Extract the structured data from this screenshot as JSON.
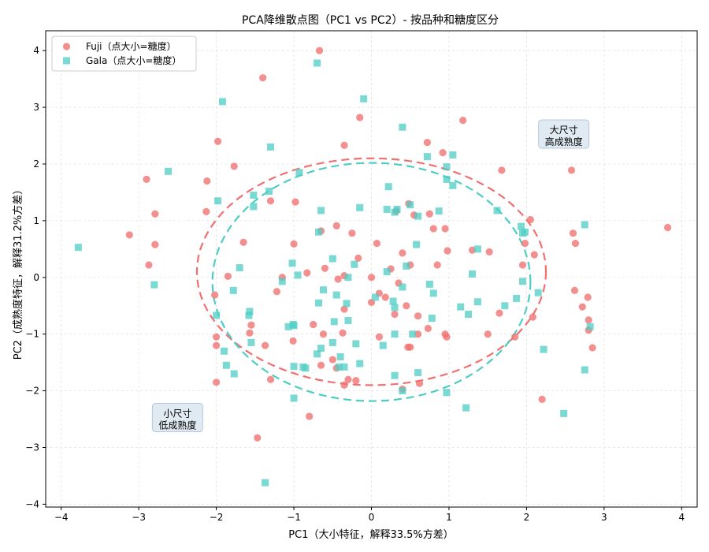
{
  "chart_data": {
    "type": "scatter",
    "title": "PCA降维散点图（PC1 vs PC2）- 按品种和糖度区分",
    "xlabel": "PC1（大小特征，解释33.5%方差）",
    "ylabel": "PC2（成熟度特征，解释31.2%方差）",
    "xlim": [
      -4.2,
      4.2
    ],
    "ylim": [
      -4.05,
      4.35
    ],
    "xticks": [
      -4,
      -3,
      -2,
      -1,
      0,
      1,
      2,
      3,
      4
    ],
    "yticks": [
      -4,
      -3,
      -2,
      -1,
      0,
      1,
      2,
      3,
      4
    ],
    "grid": true,
    "legend_position": "top-left",
    "series": [
      {
        "name": "Fuji（点大小=糖度）",
        "marker": "circle",
        "color": "#f07070",
        "points": [
          [
            -0.67,
            4.0
          ],
          [
            -1.4,
            3.52
          ],
          [
            -0.35,
            2.33
          ],
          [
            -0.15,
            2.82
          ],
          [
            0.72,
            2.38
          ],
          [
            0.92,
            2.2
          ],
          [
            1.18,
            2.77
          ],
          [
            1.68,
            1.89
          ],
          [
            -1.77,
            1.96
          ],
          [
            -1.98,
            2.4
          ],
          [
            -2.12,
            1.7
          ],
          [
            -2.9,
            1.73
          ],
          [
            -2.79,
            1.12
          ],
          [
            -2.13,
            1.16
          ],
          [
            -3.12,
            0.75
          ],
          [
            -2.79,
            0.58
          ],
          [
            -2.87,
            0.22
          ],
          [
            -1.3,
            1.35
          ],
          [
            -0.98,
            1.33
          ],
          [
            -0.65,
            0.82
          ],
          [
            -0.45,
            0.91
          ],
          [
            -0.25,
            0.78
          ],
          [
            0.07,
            0.6
          ],
          [
            -0.17,
            0.34
          ],
          [
            0.0,
            0.0
          ],
          [
            -0.35,
            0.03
          ],
          [
            -0.43,
            -0.03
          ],
          [
            -0.6,
            0.16
          ],
          [
            -0.83,
            0.08
          ],
          [
            -1.0,
            0.59
          ],
          [
            -1.22,
            -0.25
          ],
          [
            -1.15,
            0.0
          ],
          [
            -1.65,
            0.62
          ],
          [
            -1.85,
            0.02
          ],
          [
            -2.02,
            -0.31
          ],
          [
            -1.55,
            -0.84
          ],
          [
            -1.37,
            -1.2
          ],
          [
            -1.01,
            -1.12
          ],
          [
            -0.75,
            -0.83
          ],
          [
            -0.37,
            -0.98
          ],
          [
            -0.35,
            -0.56
          ],
          [
            -0.62,
            -1.0
          ],
          [
            -0.65,
            -1.55
          ],
          [
            -0.5,
            -1.45
          ],
          [
            -0.45,
            -1.6
          ],
          [
            -0.35,
            -1.9
          ],
          [
            -0.3,
            -1.8
          ],
          [
            -0.2,
            -1.82
          ],
          [
            -1.3,
            -1.8
          ],
          [
            -2.0,
            -1.85
          ],
          [
            -2.0,
            -1.2
          ],
          [
            -2.0,
            -1.05
          ],
          [
            -1.57,
            -0.98
          ],
          [
            -0.8,
            -2.45
          ],
          [
            -1.47,
            -2.83
          ],
          [
            0.1,
            -0.28
          ],
          [
            0.18,
            -0.35
          ],
          [
            0.25,
            0.15
          ],
          [
            0.3,
            -0.65
          ],
          [
            0.45,
            -0.5
          ],
          [
            0.4,
            0.43
          ],
          [
            0.5,
            0.22
          ],
          [
            0.55,
            1.1
          ],
          [
            0.48,
            1.3
          ],
          [
            0.32,
            1.17
          ],
          [
            0.75,
            1.12
          ],
          [
            0.8,
            0.86
          ],
          [
            0.95,
            0.86
          ],
          [
            0.98,
            0.47
          ],
          [
            0.85,
            0.22
          ],
          [
            0.47,
            -1.23
          ],
          [
            0.6,
            -0.68
          ],
          [
            0.73,
            -0.9
          ],
          [
            0.95,
            -1.0
          ],
          [
            0.6,
            -1.0
          ],
          [
            0.62,
            -1.87
          ],
          [
            0.4,
            -1.97
          ],
          [
            0.97,
            -1.05
          ],
          [
            1.3,
            0.48
          ],
          [
            1.52,
            0.45
          ],
          [
            1.5,
            -1.0
          ],
          [
            1.65,
            -0.63
          ],
          [
            1.85,
            -1.05
          ],
          [
            1.95,
            0.22
          ],
          [
            1.98,
            0.6
          ],
          [
            2.1,
            0.4
          ],
          [
            2.05,
            1.02
          ],
          [
            2.08,
            -0.7
          ],
          [
            2.2,
            -2.15
          ],
          [
            2.58,
            1.89
          ],
          [
            2.6,
            0.78
          ],
          [
            2.63,
            0.6
          ],
          [
            2.62,
            -0.23
          ],
          [
            2.72,
            -0.52
          ],
          [
            2.79,
            -0.35
          ],
          [
            2.8,
            -0.75
          ],
          [
            2.85,
            -1.24
          ],
          [
            2.8,
            -0.93
          ],
          [
            3.82,
            0.88
          ],
          [
            0.1,
            -1.05
          ],
          [
            0.5,
            -1.23
          ],
          [
            0.35,
            -0.1
          ],
          [
            0.0,
            -0.44
          ]
        ]
      },
      {
        "name": "Gala（点大小=糖度）",
        "marker": "square",
        "color": "#4ecdc4",
        "points": [
          [
            -0.7,
            3.78
          ],
          [
            -1.92,
            3.1
          ],
          [
            -0.1,
            3.15
          ],
          [
            0.4,
            2.65
          ],
          [
            -1.3,
            2.3
          ],
          [
            0.72,
            2.13
          ],
          [
            1.05,
            2.16
          ],
          [
            0.97,
            1.95
          ],
          [
            0.97,
            1.73
          ],
          [
            -2.62,
            1.87
          ],
          [
            -0.93,
            1.85
          ],
          [
            -1.32,
            1.52
          ],
          [
            -1.52,
            1.45
          ],
          [
            -1.52,
            1.25
          ],
          [
            -1.98,
            1.35
          ],
          [
            -0.65,
            1.18
          ],
          [
            -0.15,
            1.23
          ],
          [
            0.22,
            1.6
          ],
          [
            0.2,
            1.2
          ],
          [
            0.3,
            1.15
          ],
          [
            0.33,
            1.2
          ],
          [
            0.5,
            1.28
          ],
          [
            0.6,
            1.08
          ],
          [
            0.87,
            1.17
          ],
          [
            1.05,
            1.62
          ],
          [
            1.62,
            1.18
          ],
          [
            1.93,
            0.9
          ],
          [
            1.95,
            0.78
          ],
          [
            1.98,
            0.8
          ],
          [
            2.75,
            0.93
          ],
          [
            -3.78,
            0.53
          ],
          [
            -2.8,
            -0.13
          ],
          [
            -1.7,
            0.17
          ],
          [
            -1.15,
            -0.07
          ],
          [
            -1.02,
            0.25
          ],
          [
            -0.95,
            0.04
          ],
          [
            -0.68,
            0.8
          ],
          [
            -0.5,
            0.33
          ],
          [
            -0.3,
            0.0
          ],
          [
            -0.22,
            0.23
          ],
          [
            0.2,
            0.1
          ],
          [
            0.45,
            0.2
          ],
          [
            0.58,
            0.58
          ],
          [
            1.37,
            0.5
          ],
          [
            1.3,
            0.06
          ],
          [
            -0.68,
            -0.45
          ],
          [
            -0.45,
            -0.31
          ],
          [
            -0.62,
            -0.22
          ],
          [
            -0.32,
            -0.46
          ],
          [
            0.05,
            -0.35
          ],
          [
            0.3,
            -0.53
          ],
          [
            0.28,
            -0.42
          ],
          [
            0.4,
            -0.17
          ],
          [
            0.75,
            -0.12
          ],
          [
            0.8,
            -0.28
          ],
          [
            0.78,
            -0.72
          ],
          [
            0.3,
            -1.0
          ],
          [
            0.15,
            -1.2
          ],
          [
            -0.2,
            -1.17
          ],
          [
            -0.48,
            -0.78
          ],
          [
            -0.3,
            -0.76
          ],
          [
            -1.0,
            -0.85
          ],
          [
            -1.07,
            -0.87
          ],
          [
            -1.01,
            -0.83
          ],
          [
            -1.57,
            -0.6
          ],
          [
            -1.58,
            -0.67
          ],
          [
            -1.55,
            -1.15
          ],
          [
            -1.9,
            -1.3
          ],
          [
            -2.0,
            -0.67
          ],
          [
            -1.78,
            -0.23
          ],
          [
            -1.87,
            -1.55
          ],
          [
            -1.77,
            -1.7
          ],
          [
            -1.0,
            -1.57
          ],
          [
            -0.88,
            -1.58
          ],
          [
            -0.85,
            -1.6
          ],
          [
            -0.7,
            -1.35
          ],
          [
            -0.65,
            -1.25
          ],
          [
            -0.5,
            -1.15
          ],
          [
            -0.4,
            -1.4
          ],
          [
            -0.42,
            -1.58
          ],
          [
            -0.35,
            -1.58
          ],
          [
            -0.15,
            -1.52
          ],
          [
            0.3,
            -1.73
          ],
          [
            0.4,
            -2.0
          ],
          [
            0.6,
            -1.68
          ],
          [
            -1.0,
            -2.13
          ],
          [
            -1.37,
            -3.62
          ],
          [
            0.53,
            -1.0
          ],
          [
            1.15,
            -0.52
          ],
          [
            1.25,
            -0.65
          ],
          [
            1.37,
            -0.43
          ],
          [
            1.72,
            -0.5
          ],
          [
            1.87,
            -0.37
          ],
          [
            1.95,
            -0.07
          ],
          [
            2.15,
            -0.27
          ],
          [
            2.22,
            -1.27
          ],
          [
            0.97,
            -2.03
          ],
          [
            1.22,
            -2.3
          ],
          [
            2.48,
            -2.4
          ],
          [
            2.75,
            -1.63
          ],
          [
            2.82,
            -0.87
          ]
        ]
      }
    ],
    "ellipses": [
      {
        "series": "Fuji（点大小=糖度）",
        "color": "#f07070",
        "cx": 0.0,
        "cy": 0.1,
        "rx": 2.25,
        "ry": 2.0
      },
      {
        "series": "Gala（点大小=糖度）",
        "color": "#4ecdc4",
        "cx": 0.0,
        "cy": -0.08,
        "rx": 2.05,
        "ry": 2.1
      }
    ],
    "annotations": [
      {
        "line1": "大尺寸",
        "line2": "高成熟度",
        "x": 2.48,
        "y": 2.5
      },
      {
        "line1": "小尺寸",
        "line2": "低成熟度",
        "x": -2.5,
        "y": -2.5
      }
    ]
  }
}
